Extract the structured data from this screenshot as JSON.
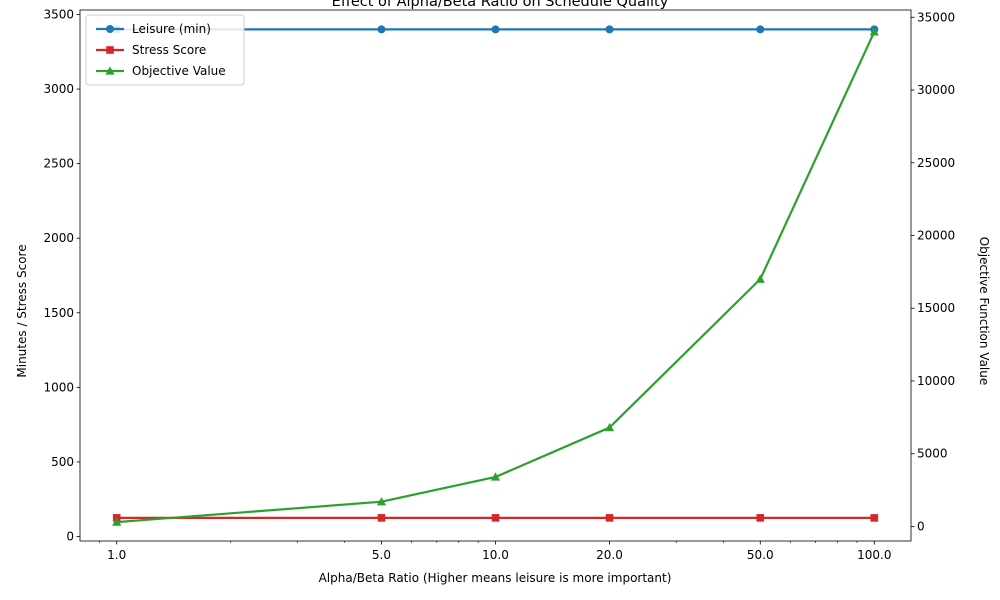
{
  "chart_data": {
    "type": "line",
    "title": "Effect of Alpha/Beta Ratio on Schedule Quality",
    "xlabel": "Alpha/Beta Ratio (Higher means leisure is more important)",
    "ylabel_left": "Minutes / Stress Score",
    "ylabel_right": "Objective Function Value",
    "x_scale": "log",
    "x": [
      1.0,
      5.0,
      10.0,
      20.0,
      50.0,
      100.0
    ],
    "x_tick_labels": [
      "1.0",
      "5.0",
      "10.0",
      "20.0",
      "50.0",
      "100.0"
    ],
    "xlim": [
      0.8,
      125
    ],
    "ylim_left": [
      -30,
      3530
    ],
    "ylim_right": [
      -1000,
      35500
    ],
    "y_ticks_left": [
      0,
      500,
      1000,
      1500,
      2000,
      2500,
      3000,
      3500
    ],
    "y_ticks_right": [
      0,
      5000,
      10000,
      15000,
      20000,
      25000,
      30000,
      35000
    ],
    "grid": false,
    "legend_position": "upper-left",
    "series": [
      {
        "name": "Leisure (min)",
        "axis": "left",
        "color": "#1f77b4",
        "marker": "circle",
        "values": [
          3400,
          3400,
          3400,
          3400,
          3400,
          3400
        ]
      },
      {
        "name": "Stress Score",
        "axis": "left",
        "color": "#d62728",
        "marker": "square",
        "values": [
          125,
          125,
          125,
          125,
          125,
          125
        ]
      },
      {
        "name": "Objective Value",
        "axis": "right",
        "color": "#2ca02c",
        "marker": "triangle",
        "values": [
          300,
          1700,
          3400,
          6800,
          17000,
          34000
        ]
      }
    ]
  }
}
